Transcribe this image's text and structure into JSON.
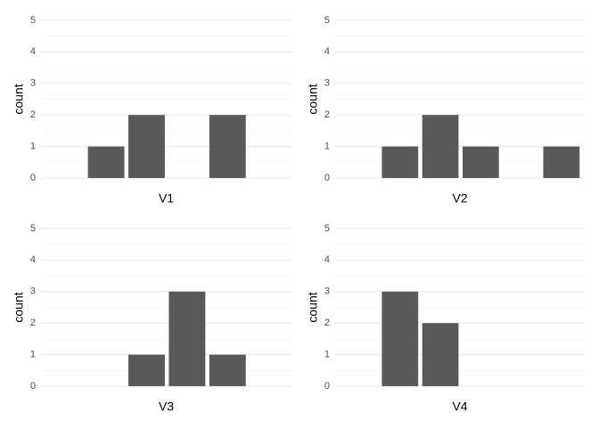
{
  "chart_data": [
    {
      "type": "bar",
      "x": [
        1,
        2,
        4
      ],
      "values": [
        1,
        2,
        2
      ],
      "x_label": "V1",
      "y_label": "count",
      "xlim": [
        -0.63,
        5.6
      ],
      "ylim": [
        -0.25,
        5.25
      ],
      "yticks": [
        0,
        1,
        2,
        3,
        4,
        5
      ],
      "minor_yticks": [
        0.5,
        1.5,
        2.5,
        3.5,
        4.5
      ],
      "grid": true,
      "color": "#595959"
    },
    {
      "type": "bar",
      "x": [
        1,
        2,
        3,
        5
      ],
      "values": [
        1,
        2,
        1,
        1
      ],
      "x_label": "V2",
      "y_label": "count",
      "xlim": [
        -0.63,
        5.6
      ],
      "ylim": [
        -0.25,
        5.25
      ],
      "yticks": [
        0,
        1,
        2,
        3,
        4,
        5
      ],
      "minor_yticks": [
        0.5,
        1.5,
        2.5,
        3.5,
        4.5
      ],
      "grid": true,
      "color": "#595959"
    },
    {
      "type": "bar",
      "x": [
        2,
        3,
        4
      ],
      "values": [
        1,
        3,
        1
      ],
      "x_label": "V3",
      "y_label": "count",
      "xlim": [
        -0.63,
        5.6
      ],
      "ylim": [
        -0.25,
        5.25
      ],
      "yticks": [
        0,
        1,
        2,
        3,
        4,
        5
      ],
      "minor_yticks": [
        0.5,
        1.5,
        2.5,
        3.5,
        4.5
      ],
      "grid": true,
      "color": "#595959"
    },
    {
      "type": "bar",
      "x": [
        1,
        2
      ],
      "values": [
        3,
        2
      ],
      "x_label": "V4",
      "y_label": "count",
      "xlim": [
        -0.63,
        5.6
      ],
      "ylim": [
        -0.25,
        5.25
      ],
      "yticks": [
        0,
        1,
        2,
        3,
        4,
        5
      ],
      "minor_yticks": [
        0.5,
        1.5,
        2.5,
        3.5,
        4.5
      ],
      "grid": true,
      "color": "#595959"
    }
  ]
}
